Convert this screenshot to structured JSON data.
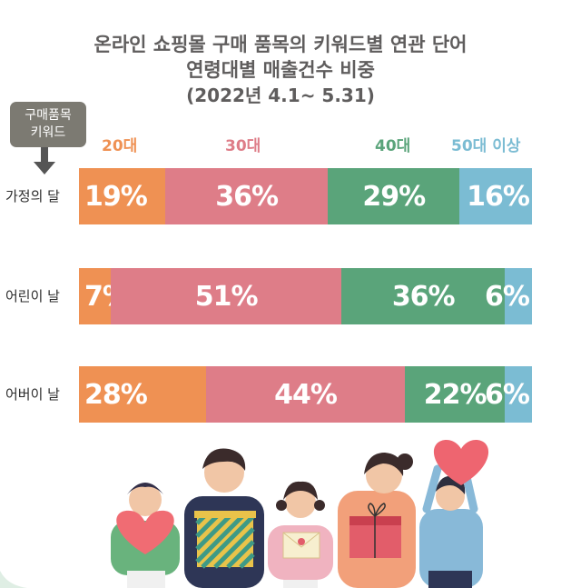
{
  "title": {
    "line1": "온라인 쇼핑몰 구매 품목의 키워드별 연관 단어",
    "line2": "연령대별 매출건수 비중",
    "line3": "(2022년 4.1~ 5.31)"
  },
  "keyword_box": {
    "line1": "구매품목",
    "line2": "키워드"
  },
  "colors": {
    "20s": "#ef9153",
    "30s": "#de7d88",
    "40s": "#5aa47a",
    "50plus": "#7bbcd3",
    "legend_20s": "#ef9153",
    "legend_30s": "#de7d88",
    "legend_40s": "#5aa47a",
    "legend_50plus": "#7bbcd3"
  },
  "chart_data": {
    "type": "bar",
    "orientation": "horizontal",
    "stacked": true,
    "normalized": "percent",
    "categories": [
      "가정의 달",
      "어린이 날",
      "어버이 날"
    ],
    "series": [
      {
        "name": "20대",
        "values": [
          19,
          7,
          28
        ]
      },
      {
        "name": "30대",
        "values": [
          36,
          51,
          44
        ]
      },
      {
        "name": "40대",
        "values": [
          29,
          36,
          22
        ]
      },
      {
        "name": "50대 이상",
        "values": [
          16,
          6,
          6
        ]
      }
    ],
    "data_labels": [
      [
        "19%",
        "36%",
        "29%",
        "16%"
      ],
      [
        "7%",
        "51%",
        "36%",
        "6%"
      ],
      [
        "28%",
        "44%",
        "22%",
        "6%"
      ]
    ],
    "legend_placement": "top",
    "grid": false
  }
}
